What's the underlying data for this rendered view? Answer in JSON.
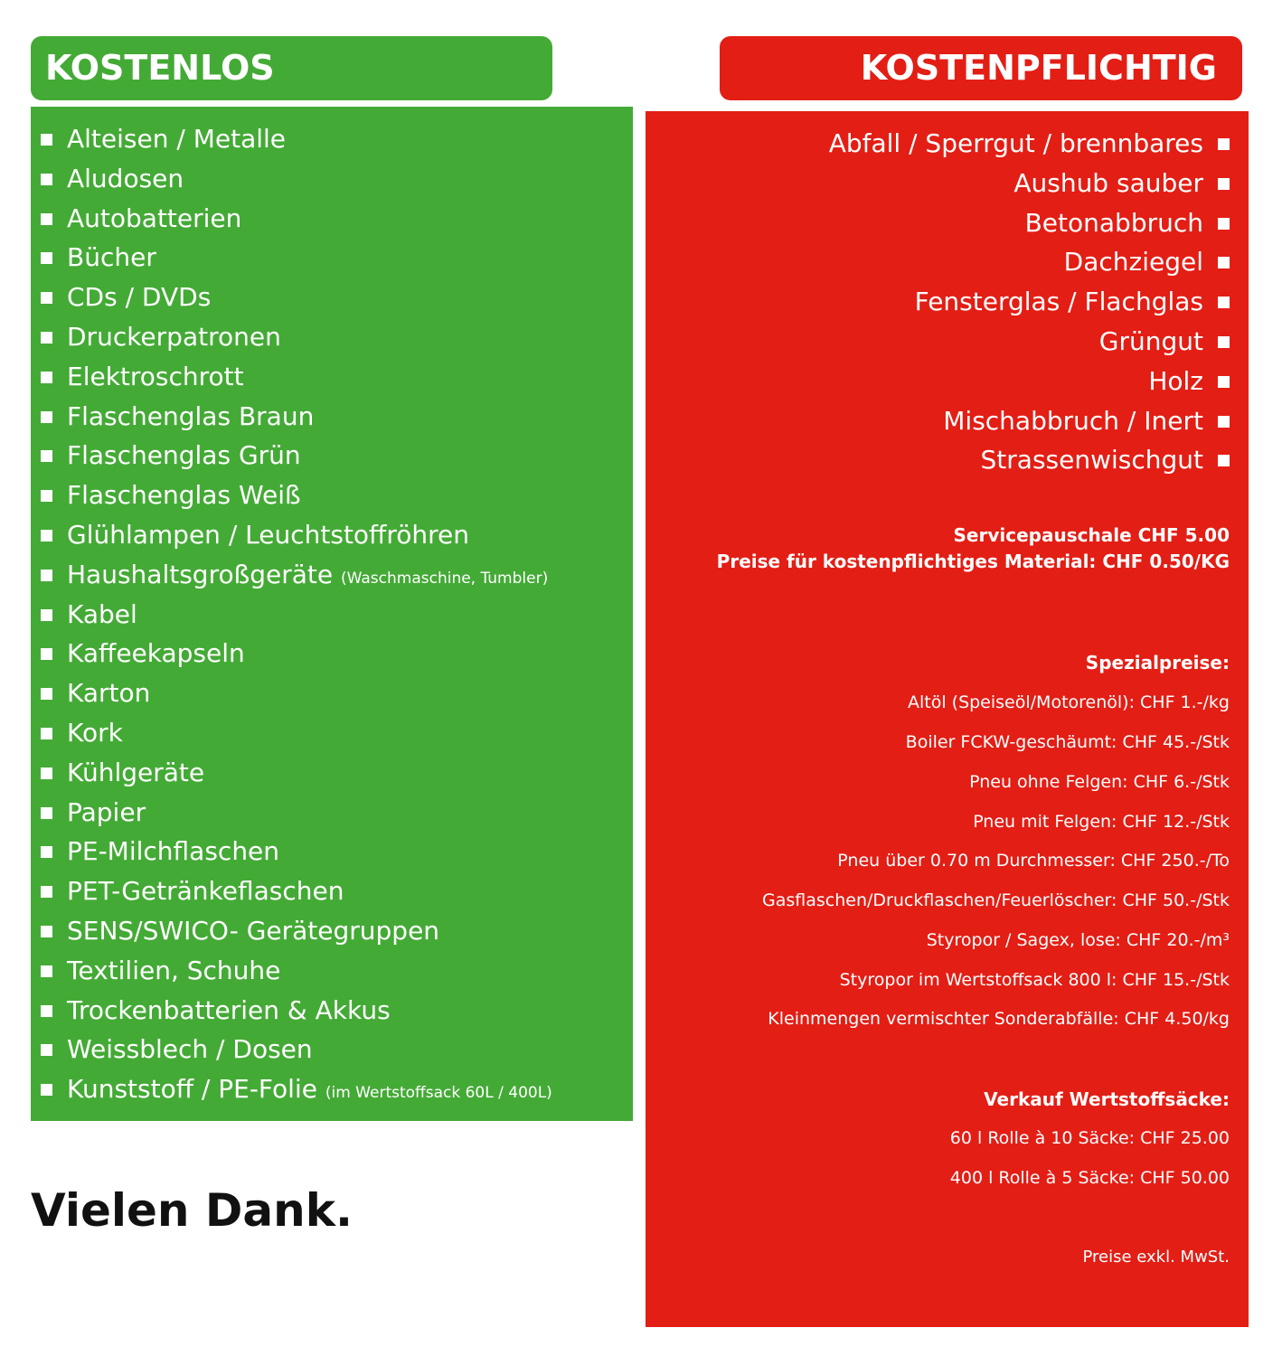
{
  "free": {
    "title": "KOSTENLOS",
    "items": [
      {
        "label": "Alteisen / Metalle",
        "note": ""
      },
      {
        "label": "Aludosen",
        "note": ""
      },
      {
        "label": "Autobatterien",
        "note": ""
      },
      {
        "label": "Bücher",
        "note": ""
      },
      {
        "label": "CDs / DVDs",
        "note": ""
      },
      {
        "label": "Druckerpatronen",
        "note": ""
      },
      {
        "label": "Elektroschrott",
        "note": ""
      },
      {
        "label": "Flaschenglas Braun",
        "note": ""
      },
      {
        "label": "Flaschenglas Grün",
        "note": ""
      },
      {
        "label": "Flaschenglas Weiß",
        "note": ""
      },
      {
        "label": "Glühlampen / Leuchtstoffröhren",
        "note": ""
      },
      {
        "label": "Haushaltsgroßgeräte",
        "note": "(Waschmaschine, Tumbler)"
      },
      {
        "label": "Kabel",
        "note": ""
      },
      {
        "label": "Kaffeekapseln",
        "note": ""
      },
      {
        "label": "Karton",
        "note": ""
      },
      {
        "label": "Kork",
        "note": ""
      },
      {
        "label": "Kühlgeräte",
        "note": ""
      },
      {
        "label": "Papier",
        "note": ""
      },
      {
        "label": "PE-Milchflaschen",
        "note": ""
      },
      {
        "label": "PET-Getränkeflaschen",
        "note": ""
      },
      {
        "label": "SENS/SWICO- Gerätegruppen",
        "note": ""
      },
      {
        "label": "Textilien, Schuhe",
        "note": ""
      },
      {
        "label": "Trockenbatterien & Akkus",
        "note": ""
      },
      {
        "label": "Weissblech / Dosen",
        "note": ""
      },
      {
        "label": "Kunststoff / PE-Folie",
        "note": "(im Wertstoffsack 60L / 400L)"
      }
    ]
  },
  "paid": {
    "title": "KOSTENPFLICHTIG",
    "items": [
      "Abfall / Sperrgut / brennbares",
      "Aushub sauber",
      "Betonabbruch",
      "Dachziegel",
      "Fensterglas / Flachglas",
      "Grüngut",
      "Holz",
      "Mischabbruch / Inert",
      "Strassenwischgut"
    ],
    "service_fee": "Servicepauschale CHF 5.00",
    "material_price": "Preise für kostenpflichtiges Material: CHF 0.50/KG",
    "special_title": "Spezialpreise:",
    "special_items": [
      "Altöl (Speiseöl/Motorenöl): CHF 1.-/kg",
      "Boiler FCKW-geschäumt: CHF 45.-/Stk",
      "Pneu ohne Felgen: CHF 6.-/Stk",
      "Pneu mit Felgen: CHF 12.-/Stk",
      "Pneu über 0.70 m Durchmesser: CHF 250.-/To",
      "Gasflaschen/Druckflaschen/Feuerlöscher: CHF 50.-/Stk",
      "Styropor / Sagex, lose: CHF 20.-/m³",
      "Styropor im Wertstoffsack 800 l: CHF 15.-/Stk",
      "Kleinmengen vermischter Sonderabfälle: CHF 4.50/kg"
    ],
    "bags_title": "Verkauf Wertstoffsäcke:",
    "bags_items": [
      "60 l Rolle à 10 Säcke: CHF 25.00",
      "400 l Rolle à 5 Säcke: CHF 50.00"
    ],
    "footnote": "Preise exkl. MwSt."
  },
  "thanks": "Vielen Dank.",
  "colors": {
    "green": "#44aa36",
    "red": "#e31e15",
    "text": "#ffffff",
    "dark": "#111111"
  }
}
